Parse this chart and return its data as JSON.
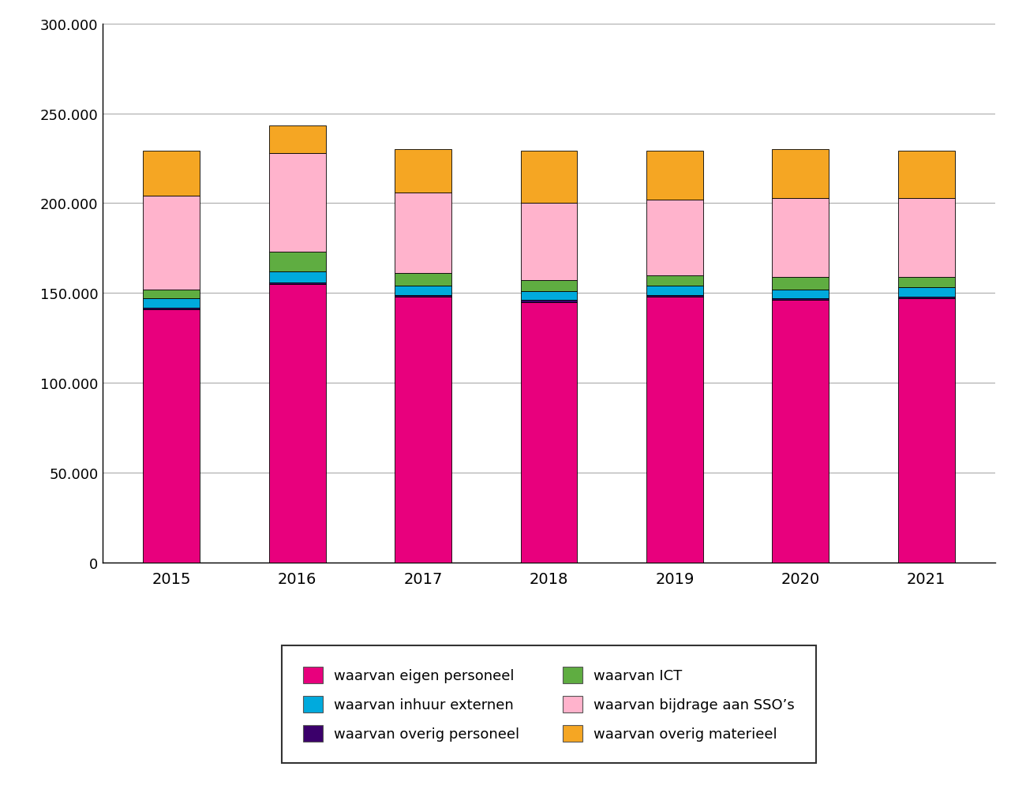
{
  "years": [
    2015,
    2016,
    2017,
    2018,
    2019,
    2020,
    2021
  ],
  "series": {
    "eigen_personeel": [
      141000,
      155000,
      148000,
      145000,
      148000,
      146000,
      147000
    ],
    "overig_personeel": [
      1000,
      1000,
      1000,
      1000,
      1000,
      1000,
      1000
    ],
    "inhuur_externen": [
      5000,
      6000,
      5000,
      5000,
      5000,
      5000,
      5000
    ],
    "ICT": [
      5000,
      11000,
      7000,
      6000,
      6000,
      7000,
      6000
    ],
    "bijdrage_SSO": [
      52000,
      55000,
      45000,
      43000,
      42000,
      44000,
      44000
    ],
    "overig_materieel": [
      25000,
      15000,
      24000,
      29000,
      27000,
      27000,
      26000
    ]
  },
  "colors": {
    "eigen_personeel": "#E8007D",
    "overig_personeel": "#3B006B",
    "inhuur_externen": "#00AADD",
    "ICT": "#5FAD41",
    "bijdrage_SSO": "#FFB3CC",
    "overig_materieel": "#F5A623"
  },
  "labels": {
    "eigen_personeel": "waarvan eigen personeel",
    "overig_personeel": "waarvan overig personeel",
    "inhuur_externen": "waarvan inhuur externen",
    "ICT": "waarvan ICT",
    "bijdrage_SSO": "waarvan bijdrage aan SSO’s",
    "overig_materieel": "waarvan overig materieel"
  },
  "ylim": [
    0,
    300000
  ],
  "yticks": [
    0,
    50000,
    100000,
    150000,
    200000,
    250000,
    300000
  ],
  "ytick_labels": [
    "0",
    "50.000",
    "100.000",
    "150.000",
    "200.000",
    "250.000",
    "300.000"
  ],
  "background_color": "#ffffff",
  "grid_color": "#aaaaaa",
  "bar_width": 0.45,
  "bar_edge_color": "#000000",
  "bar_edge_width": 0.6,
  "legend_order_left": [
    "eigen_personeel",
    "overig_personeel",
    "bijdrage_SSO"
  ],
  "legend_order_right": [
    "inhuur_externen",
    "ICT",
    "overig_materieel"
  ]
}
